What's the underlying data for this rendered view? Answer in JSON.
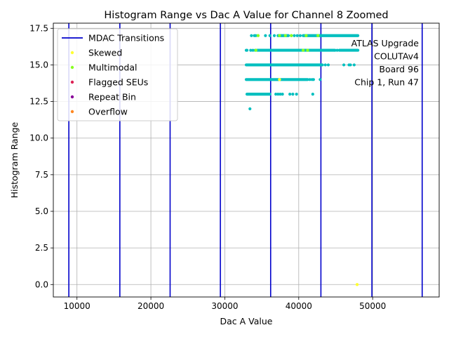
{
  "chart_data": {
    "type": "scatter",
    "title": "Histogram Range vs Dac A Value for Channel 8 Zoomed",
    "xlabel": "Dac A Value",
    "ylabel": "Histogram Range",
    "xlim": [
      6800,
      59000
    ],
    "ylim": [
      -0.85,
      17.85
    ],
    "grid": true,
    "x_ticks": [
      10000,
      20000,
      30000,
      40000,
      50000
    ],
    "x_tick_labels": [
      "10000",
      "20000",
      "30000",
      "40000",
      "50000"
    ],
    "y_ticks": [
      0.0,
      2.5,
      5.0,
      7.5,
      10.0,
      12.5,
      15.0,
      17.5
    ],
    "y_tick_labels": [
      "0.0",
      "2.5",
      "5.0",
      "7.5",
      "10.0",
      "12.5",
      "15.0",
      "17.5"
    ],
    "mdac_transitions": [
      8900,
      15800,
      22600,
      29400,
      36200,
      43000,
      49900,
      56700
    ],
    "legend": {
      "placement": "upper-left",
      "entries": [
        {
          "label": "MDAC Transitions",
          "color": "#0000cc",
          "marker": "line"
        },
        {
          "label": "Skewed",
          "color": "#ffff33",
          "marker": "dot"
        },
        {
          "label": "Multimodal",
          "color": "#88ff22",
          "marker": "dot"
        },
        {
          "label": "Flagged SEUs",
          "color": "#dd2255",
          "marker": "dot"
        },
        {
          "label": "Repeat Bin",
          "color": "#880099",
          "marker": "dot"
        },
        {
          "label": "Overflow",
          "color": "#ff8822",
          "marker": "dot"
        }
      ]
    },
    "annotation": [
      "ATLAS Upgrade",
      "COLUTAv4",
      "Board 96",
      "Chip 1, Run 47"
    ],
    "point_color": "#00bfbf",
    "series": [
      {
        "y": 17,
        "ranges": [
          [
            37200,
            38600
          ],
          [
            40600,
            48000
          ]
        ],
        "points": [
          33600,
          34000,
          34200,
          35500,
          36100,
          36700,
          39000,
          39400,
          39800,
          40200
        ]
      },
      {
        "y": 16,
        "ranges": [
          [
            34400,
            44800
          ],
          [
            45500,
            48000
          ]
        ],
        "points": [
          32900,
          33000,
          33500,
          33800,
          34100,
          44900,
          45200
        ]
      },
      {
        "y": 15,
        "ranges": [
          [
            32900,
            43200
          ]
        ],
        "points": [
          43600,
          44000,
          46100,
          46800,
          47000,
          47500
        ]
      },
      {
        "y": 14,
        "ranges": [
          [
            32900,
            41200
          ]
        ],
        "points": [
          41500,
          41800,
          42000,
          42900
        ]
      },
      {
        "y": 13,
        "ranges": [
          [
            33000,
            36100
          ]
        ],
        "points": [
          36900,
          37200,
          37500,
          37800,
          38800,
          39200,
          39700,
          41900
        ]
      },
      {
        "y": 12,
        "ranges": [],
        "points": [
          33400
        ]
      }
    ],
    "flagged_points": [
      {
        "category": "Multimodal",
        "x": 34500,
        "y": 17
      },
      {
        "category": "Multimodal",
        "x": 37400,
        "y": 17
      },
      {
        "category": "Multimodal",
        "x": 38200,
        "y": 17
      },
      {
        "category": "Multimodal",
        "x": 39000,
        "y": 17
      },
      {
        "category": "Multimodal",
        "x": 41000,
        "y": 17
      },
      {
        "category": "Multimodal",
        "x": 42600,
        "y": 17
      },
      {
        "category": "Multimodal",
        "x": 34200,
        "y": 16
      },
      {
        "category": "Multimodal",
        "x": 40600,
        "y": 16
      },
      {
        "category": "Multimodal",
        "x": 41200,
        "y": 16
      },
      {
        "category": "Skewed",
        "x": 37400,
        "y": 14
      },
      {
        "category": "Skewed",
        "x": 47900,
        "y": 0
      }
    ]
  }
}
